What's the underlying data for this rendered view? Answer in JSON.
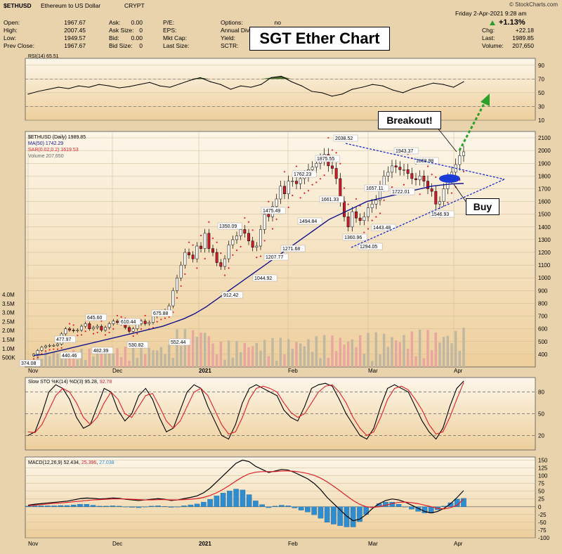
{
  "header": {
    "symbol": "$ETHUSD",
    "name": "Ethereum to US Dollar",
    "exchange": "CRYPT",
    "watermark": "© StockCharts.com",
    "date_line": "Friday   2-Apr-2021  9:28 am",
    "col1": [
      {
        "k": "Open:",
        "v": "1967.67"
      },
      {
        "k": "High:",
        "v": "2007.45"
      },
      {
        "k": "Low:",
        "v": "1949.57"
      },
      {
        "k": "Prev Close:",
        "v": "1967.67"
      }
    ],
    "col2": [
      {
        "k": "Ask:",
        "v": "0.00"
      },
      {
        "k": "Ask Size:",
        "v": "0"
      },
      {
        "k": "Bid:",
        "v": "0.00"
      },
      {
        "k": "Bid Size:",
        "v": "0"
      }
    ],
    "col3": [
      {
        "k": "P/E:",
        "v": ""
      },
      {
        "k": "EPS:",
        "v": ""
      },
      {
        "k": "Mkt Cap:",
        "v": ""
      },
      {
        "k": "Last Size:",
        "v": ""
      }
    ],
    "col4": [
      {
        "k": "Options:",
        "v": "no"
      },
      {
        "k": "Annual Div",
        "v": ""
      },
      {
        "k": "Yield:",
        "v": ""
      },
      {
        "k": "SCTR:",
        "v": ""
      }
    ],
    "pct_change": "+1.13%",
    "col5": [
      {
        "k": "Chg:",
        "v": "+22.18"
      },
      {
        "k": "Last:",
        "v": "1989.85"
      },
      {
        "k": "Volume:",
        "v": "207,650"
      }
    ]
  },
  "overlay_title": "SGT Ether Chart",
  "callouts": {
    "breakout": "Breakout!",
    "buy": "Buy"
  },
  "colors": {
    "background": "#e9d3ad",
    "plot_bg_top": "#fdf7ea",
    "plot_bg_bottom": "#eecf9c",
    "up_candle": "#ffffff",
    "down_candle": "#d01c2a",
    "ma50": "#13138c",
    "sar": "#e0202a",
    "volume_up": "#c0b7a3",
    "volume_down": "#e8a6a0",
    "rsi_fill": "#4a6b2c",
    "stoch_k": "#000000",
    "stoch_d": "#e0202a",
    "macd_line": "#000000",
    "macd_signal": "#e0202a",
    "macd_hist": "#2e8ccf",
    "trendline": "#1c2bd0",
    "arrow": "#2aa12a",
    "buy_marker": "#1a3bd6"
  },
  "chart_data": [
    {
      "type": "line",
      "title": "RSI(14) 65.51",
      "label": "RSI(14) 65.51",
      "y_ticks": [
        90,
        70,
        50,
        30,
        10
      ],
      "ylim": [
        10,
        100
      ],
      "levels": [
        70,
        30
      ],
      "x": [
        "Nov",
        "",
        "",
        "",
        "",
        "",
        "",
        "Dec",
        "",
        "",
        "",
        "",
        "",
        "",
        "",
        "",
        "",
        "2021",
        "",
        "",
        "",
        "",
        "",
        "",
        "",
        "",
        "Feb",
        "",
        "",
        "",
        "",
        "",
        "",
        "",
        "Mar",
        "",
        "",
        "",
        "",
        "",
        "",
        "",
        "",
        "Apr"
      ],
      "values": [
        48,
        52,
        55,
        58,
        56,
        60,
        58,
        62,
        60,
        57,
        59,
        62,
        65,
        60,
        58,
        63,
        68,
        72,
        66,
        62,
        55,
        60,
        58,
        62,
        72,
        74,
        66,
        60,
        52,
        50,
        45,
        48,
        55,
        58,
        62,
        60,
        54,
        50,
        56,
        60,
        64,
        62,
        58,
        66
      ]
    },
    {
      "type": "candlestick",
      "title": "$ETHUSD (Daily) 1989.85",
      "legend": [
        "$ETHUSD (Daily) 1989.85",
        "MA(50) 1742.29",
        "SAR(0.02,0.2) 1619.53",
        "Volume 207,650"
      ],
      "y_ticks": [
        2100,
        2000,
        1900,
        1800,
        1700,
        1600,
        1500,
        1400,
        1300,
        1200,
        1100,
        1000,
        900,
        800,
        700,
        600,
        500,
        400
      ],
      "ylim": [
        300,
        2150
      ],
      "volume_ticks": [
        "4.0M",
        "3.5M",
        "3.0M",
        "2.5M",
        "2.0M",
        "1.5M",
        "1.0M",
        "500K"
      ],
      "x_axis_labels": [
        "Nov",
        "Dec",
        "2021",
        "Feb",
        "Mar",
        "Apr"
      ],
      "annotations": [
        {
          "label": "374.08",
          "value": 374.08
        },
        {
          "label": "440.46",
          "value": 440.46
        },
        {
          "label": "477.97",
          "value": 477.97
        },
        {
          "label": "482.39",
          "value": 482.39
        },
        {
          "label": "530.82",
          "value": 530.82
        },
        {
          "label": "552.44",
          "value": 552.44
        },
        {
          "label": "610.44",
          "value": 610.44
        },
        {
          "label": "645.60",
          "value": 645.6
        },
        {
          "label": "675.88",
          "value": 675.88
        },
        {
          "label": "912.42",
          "value": 912.42
        },
        {
          "label": "1044.92",
          "value": 1044.92
        },
        {
          "label": "1207.77",
          "value": 1207.77
        },
        {
          "label": "1271.68",
          "value": 1271.68
        },
        {
          "label": "1350.09",
          "value": 1350.09
        },
        {
          "label": "1475.49",
          "value": 1475.49
        },
        {
          "label": "1494.84",
          "value": 1494.84
        },
        {
          "label": "1762.23",
          "value": 1762.23
        },
        {
          "label": "1875.55",
          "value": 1875.55
        },
        {
          "label": "2038.52",
          "value": 2038.52
        },
        {
          "label": "1661.33",
          "value": 1661.33
        },
        {
          "label": "1360.96",
          "value": 1360.96
        },
        {
          "label": "1294.05",
          "value": 1294.05
        },
        {
          "label": "1443.48",
          "value": 1443.48
        },
        {
          "label": "1657.11",
          "value": 1657.11
        },
        {
          "label": "1722.01",
          "value": 1722.01
        },
        {
          "label": "1943.37",
          "value": 1943.37
        },
        {
          "label": "1868.98",
          "value": 1868.98
        },
        {
          "label": "1546.93",
          "value": 1546.93
        }
      ],
      "close": [
        400,
        430,
        455,
        465,
        470,
        470,
        480,
        560,
        600,
        590,
        585,
        590,
        620,
        640,
        600,
        610,
        620,
        590,
        610,
        640,
        660,
        650,
        640,
        610,
        580,
        600,
        640,
        660,
        640,
        650,
        700,
        720,
        730,
        740,
        780,
        900,
        1000,
        1100,
        1200,
        1180,
        1150,
        1250,
        1230,
        1350,
        1230,
        1200,
        1120,
        1090,
        1150,
        1260,
        1300,
        1330,
        1380,
        1350,
        1290,
        1240,
        1250,
        1380,
        1500,
        1480,
        1560,
        1620,
        1720,
        1660,
        1760,
        1760,
        1740,
        1780,
        1800,
        1850,
        1870,
        1900,
        1930,
        1970,
        1880,
        1860,
        1780,
        1600,
        1480,
        1400,
        1520,
        1470,
        1450,
        1480,
        1550,
        1580,
        1610,
        1720,
        1800,
        1830,
        1880,
        1870,
        1850,
        1850,
        1820,
        1780,
        1770,
        1800,
        1760,
        1700,
        1680,
        1580,
        1600,
        1700,
        1780,
        1830,
        1890,
        1960,
        1990
      ],
      "ma50": [
        390,
        395,
        400,
        410,
        420,
        430,
        440,
        450,
        460,
        470,
        480,
        490,
        500,
        510,
        520,
        530,
        540,
        550,
        560,
        570,
        580,
        590,
        600,
        610,
        620,
        635,
        650,
        665,
        680,
        700,
        720,
        745,
        770,
        800,
        830,
        860,
        890,
        920,
        950,
        980,
        1010,
        1040,
        1070,
        1100,
        1130,
        1160,
        1190,
        1220,
        1250,
        1280,
        1310,
        1340,
        1370,
        1400,
        1430,
        1460,
        1480,
        1500,
        1520,
        1540,
        1560,
        1580,
        1600,
        1610,
        1620,
        1630,
        1640,
        1650,
        1660,
        1670,
        1680,
        1690,
        1700,
        1710,
        1720,
        1725,
        1730,
        1735,
        1738,
        1740,
        1742
      ]
    },
    {
      "type": "line",
      "title": "Slow STO %K(14) %D(3) 95.28, 92.78",
      "label": "Slow STO %K(14) %D(3) ",
      "k_value": "95.28",
      "d_value": "92.78",
      "y_ticks": [
        80,
        50,
        20
      ],
      "ylim": [
        0,
        100
      ],
      "levels": [
        80,
        50,
        20
      ],
      "x_axis_labels": [
        "Nov",
        "Dec",
        "2021",
        "Feb",
        "Mar",
        "Apr"
      ],
      "series": [
        {
          "name": "%K",
          "values": [
            20,
            25,
            50,
            80,
            90,
            85,
            70,
            45,
            30,
            35,
            60,
            85,
            80,
            55,
            40,
            50,
            75,
            85,
            70,
            45,
            25,
            30,
            55,
            80,
            90,
            85,
            60,
            40,
            20,
            15,
            35,
            65,
            85,
            90,
            85,
            80,
            75,
            55,
            45,
            40,
            60,
            85,
            90,
            92,
            88,
            70,
            50,
            35,
            20,
            15,
            30,
            60,
            85,
            90,
            85,
            80,
            60,
            40,
            25,
            15,
            30,
            60,
            85,
            95
          ]
        },
        {
          "name": "%D",
          "values": [
            25,
            24,
            35,
            55,
            75,
            85,
            80,
            65,
            45,
            35,
            45,
            65,
            80,
            70,
            50,
            45,
            60,
            75,
            78,
            60,
            40,
            30,
            40,
            60,
            80,
            85,
            75,
            55,
            35,
            22,
            25,
            45,
            70,
            85,
            88,
            85,
            80,
            65,
            52,
            45,
            50,
            65,
            80,
            88,
            90,
            80,
            65,
            45,
            30,
            20,
            25,
            45,
            70,
            85,
            88,
            83,
            70,
            55,
            35,
            22,
            25,
            45,
            70,
            93
          ]
        }
      ]
    },
    {
      "type": "line",
      "title": "MACD(12,26,9) 52.434, 25.396, 27.038",
      "label": "MACD(12,26,9) ",
      "macd_value": "52.434",
      "signal_value": "25.396",
      "hist_value": "27.038",
      "y_ticks": [
        150,
        125,
        100,
        75,
        50,
        25,
        0,
        -25,
        -50,
        -75,
        -100
      ],
      "ylim": [
        -100,
        160
      ],
      "x_axis_labels": [
        "Nov",
        "Dec",
        "2021",
        "Feb",
        "Mar",
        "Apr"
      ],
      "series": [
        {
          "name": "MACD",
          "values": [
            5,
            8,
            10,
            12,
            14,
            16,
            18,
            22,
            26,
            28,
            27,
            25,
            26,
            28,
            27,
            24,
            22,
            20,
            22,
            24,
            26,
            24,
            20,
            22,
            26,
            30,
            35,
            45,
            60,
            80,
            100,
            120,
            140,
            150,
            145,
            130,
            120,
            110,
            115,
            120,
            118,
            110,
            100,
            90,
            75,
            55,
            30,
            10,
            -10,
            -30,
            -45,
            -40,
            -25,
            -5,
            10,
            20,
            25,
            22,
            15,
            5,
            -5,
            -15,
            -20,
            -15,
            -5,
            10,
            30,
            52
          ]
        },
        {
          "name": "Signal",
          "values": [
            3,
            5,
            7,
            9,
            11,
            12,
            14,
            16,
            18,
            20,
            22,
            23,
            24,
            25,
            25,
            25,
            24,
            23,
            22,
            22,
            23,
            23,
            22,
            22,
            23,
            24,
            26,
            30,
            36,
            45,
            56,
            69,
            83,
            96,
            106,
            111,
            113,
            113,
            113,
            115,
            115,
            114,
            111,
            107,
            101,
            92,
            80,
            66,
            51,
            35,
            20,
            8,
            0,
            -2,
            0,
            5,
            10,
            14,
            15,
            13,
            10,
            5,
            0,
            -5,
            -7,
            -3,
            5,
            25
          ]
        },
        {
          "name": "Histogram",
          "values": [
            2,
            3,
            3,
            3,
            3,
            4,
            4,
            6,
            8,
            8,
            5,
            2,
            2,
            3,
            2,
            -1,
            -2,
            -3,
            0,
            2,
            3,
            1,
            -2,
            0,
            3,
            6,
            9,
            15,
            24,
            35,
            44,
            51,
            57,
            54,
            39,
            19,
            7,
            -3,
            2,
            5,
            3,
            -4,
            -11,
            -17,
            -26,
            -37,
            -50,
            -56,
            -61,
            -65,
            -65,
            -48,
            -25,
            -3,
            10,
            15,
            15,
            8,
            0,
            -8,
            -15,
            -20,
            -20,
            -10,
            2,
            13,
            25,
            27
          ]
        }
      ]
    }
  ]
}
